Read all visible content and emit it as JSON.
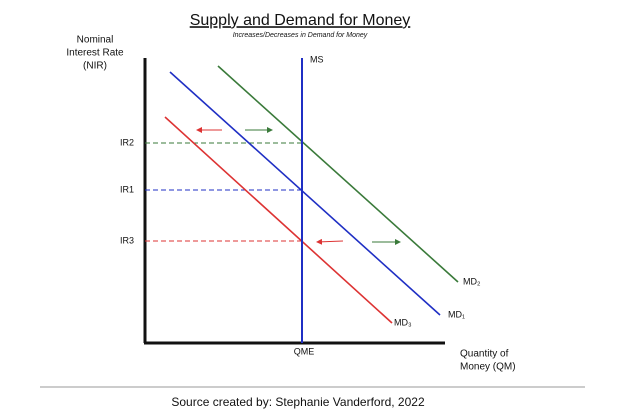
{
  "title": "Supply and Demand for Money",
  "subtitle": "Increases/Decreases in Demand for Money",
  "y_axis_label": [
    "Nominal",
    "Interest Rate",
    "(NIR)"
  ],
  "x_axis_label": [
    "Quantity of",
    "Money (QM)"
  ],
  "rate_labels": [
    "IR2",
    "IR1",
    "IR3"
  ],
  "supply_label": "MS",
  "demand_labels": [
    "MD₂",
    "MD₁",
    "MD₃"
  ],
  "quantity_label": "QME",
  "source": "Source created by: Stephanie Vanderford, 2022"
}
